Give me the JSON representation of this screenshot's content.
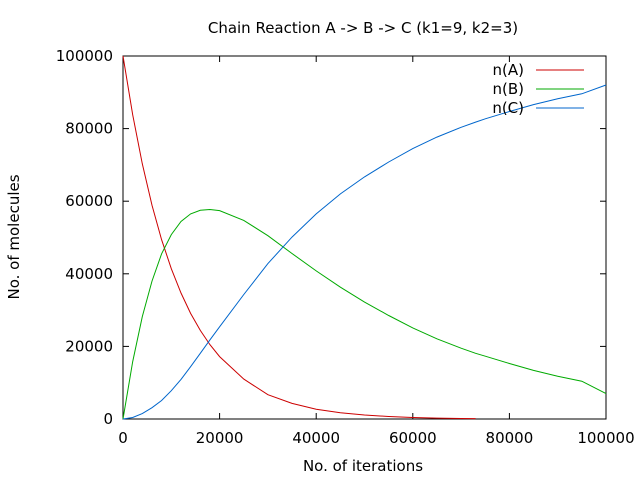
{
  "chart_data": {
    "type": "line",
    "title": "Chain Reaction A -> B -> C (k1=9, k2=3)",
    "xlabel": "No. of iterations",
    "ylabel": "No. of molecules",
    "xlim": [
      0,
      100000
    ],
    "ylim": [
      0,
      100000
    ],
    "xticks": [
      0,
      20000,
      40000,
      60000,
      80000,
      100000
    ],
    "yticks": [
      0,
      20000,
      40000,
      60000,
      80000,
      100000
    ],
    "xtick_labels": [
      "0",
      "20000",
      "40000",
      "60000",
      "80000",
      "100000"
    ],
    "ytick_labels": [
      "0",
      "20000",
      "40000",
      "60000",
      "80000",
      "100000"
    ],
    "grid": false,
    "legend_position": "top-right",
    "x": [
      0,
      2000,
      4000,
      6000,
      8000,
      10000,
      12000,
      14000,
      16000,
      18000,
      20000,
      25000,
      30000,
      35000,
      40000,
      45000,
      50000,
      55000,
      60000,
      65000,
      70000,
      73000,
      75000,
      80000,
      85000,
      90000,
      95000,
      100000
    ],
    "series": [
      {
        "name": "n(A)",
        "color": "#cc0000",
        "values": [
          100000,
          83800,
          70300,
          58900,
          49400,
          41400,
          34700,
          29100,
          24400,
          20500,
          17200,
          11000,
          6700,
          4300,
          2700,
          1700,
          1100,
          700,
          400,
          250,
          150,
          100,
          null,
          null,
          null,
          null,
          null,
          null
        ]
      },
      {
        "name": "n(B)",
        "color": "#00aa00",
        "values": [
          0,
          15800,
          28200,
          38000,
          45500,
          50800,
          54400,
          56500,
          57500,
          57700,
          57400,
          54700,
          50500,
          45600,
          40800,
          36300,
          32200,
          28500,
          25100,
          22100,
          19500,
          18100,
          17300,
          15300,
          13400,
          11800,
          10400,
          7000
        ]
      },
      {
        "name": "n(C)",
        "color": "#0066cc",
        "values": [
          0,
          400,
          1500,
          3100,
          5100,
          7800,
          10900,
          14400,
          18100,
          21800,
          25400,
          34300,
          42800,
          50100,
          56500,
          62000,
          66700,
          70800,
          74500,
          77650,
          80350,
          81800,
          82700,
          84700,
          86600,
          88200,
          89600,
          92000
        ]
      }
    ]
  }
}
